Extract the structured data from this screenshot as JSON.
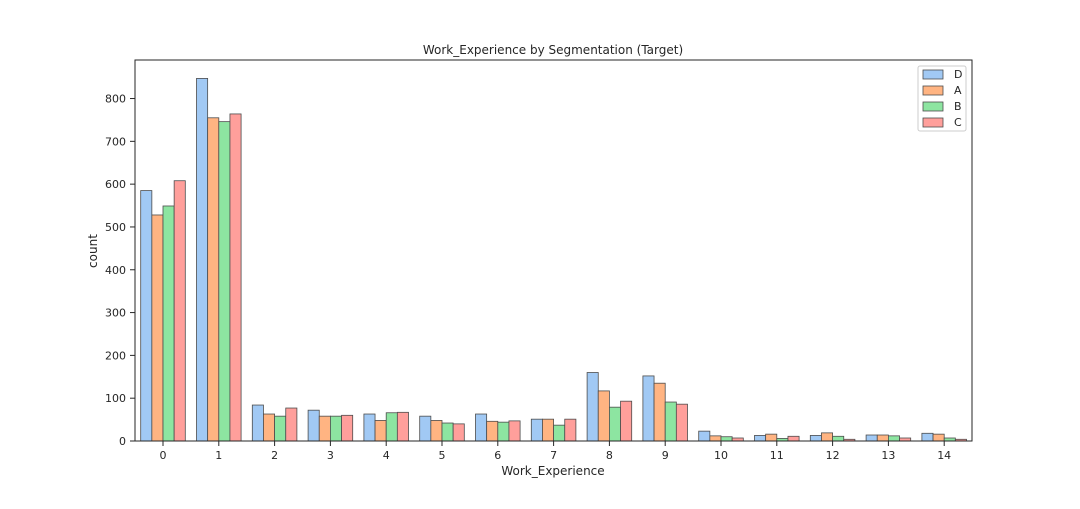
{
  "chart_data": {
    "type": "bar",
    "title": "Work_Experience by Segmentation (Target)",
    "xlabel": "Work_Experience",
    "ylabel": "count",
    "ylim": [
      0,
      890
    ],
    "yticks": [
      0,
      100,
      200,
      300,
      400,
      500,
      600,
      700,
      800
    ],
    "categories": [
      "0",
      "1",
      "2",
      "3",
      "4",
      "5",
      "6",
      "7",
      "8",
      "9",
      "10",
      "11",
      "12",
      "13",
      "14"
    ],
    "grid": false,
    "legend_position": "top-right",
    "series": [
      {
        "name": "D",
        "color": "#a1c9f4",
        "values": [
          585,
          847,
          84,
          72,
          63,
          58,
          63,
          51,
          160,
          152,
          23,
          13,
          13,
          14,
          18
        ]
      },
      {
        "name": "A",
        "color": "#ffb482",
        "values": [
          528,
          755,
          63,
          58,
          48,
          48,
          46,
          51,
          117,
          135,
          12,
          16,
          19,
          14,
          16
        ]
      },
      {
        "name": "B",
        "color": "#8de5a1",
        "values": [
          549,
          746,
          58,
          58,
          66,
          42,
          44,
          37,
          79,
          91,
          10,
          6,
          11,
          12,
          7
        ]
      },
      {
        "name": "C",
        "color": "#ff9f9b",
        "values": [
          608,
          764,
          77,
          60,
          67,
          40,
          47,
          51,
          93,
          86,
          7,
          11,
          4,
          7,
          4
        ]
      }
    ]
  }
}
